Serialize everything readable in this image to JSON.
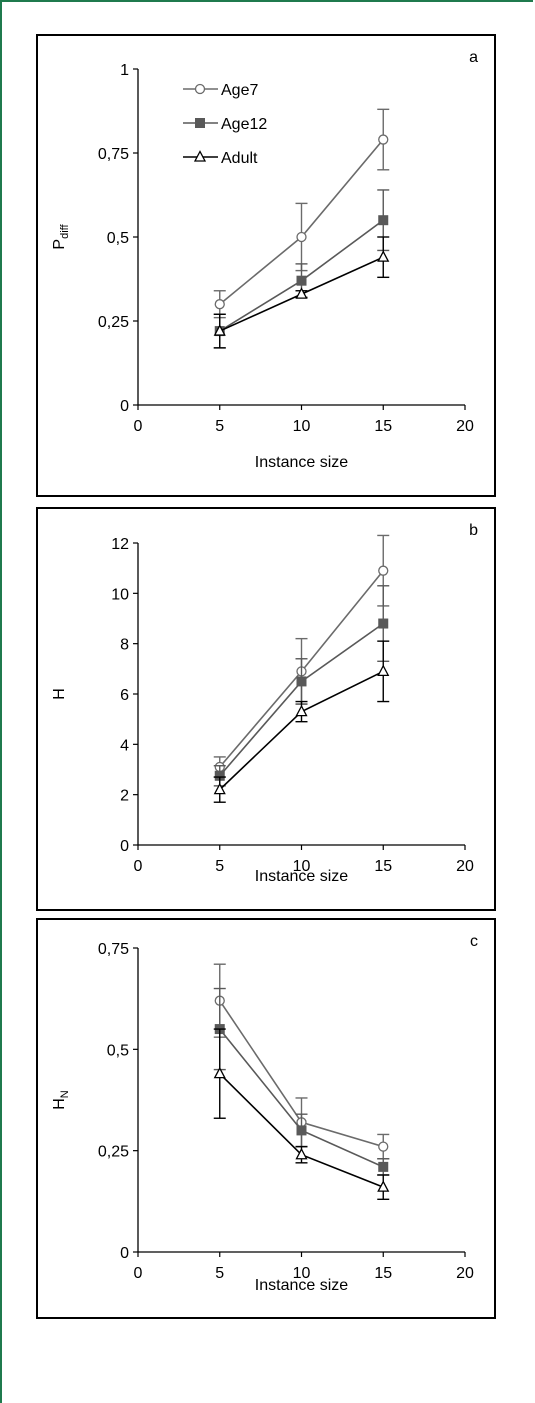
{
  "chart_data": [
    {
      "type": "line",
      "panel_label": "a",
      "xlabel": "Instance size",
      "ylabel_main": "P",
      "ylabel_sub": "diff",
      "xlim": [
        0,
        20
      ],
      "ylim": [
        0,
        1
      ],
      "xticks": [
        0,
        5,
        10,
        15,
        20
      ],
      "xtick_labels": [
        "0",
        "5",
        "10",
        "15",
        "20"
      ],
      "yticks": [
        0,
        0.25,
        0.5,
        0.75,
        1
      ],
      "ytick_labels": [
        "0",
        "0,25",
        "0,5",
        "0,75",
        "1"
      ],
      "x": [
        5,
        10,
        15
      ],
      "legend": true,
      "legend_position": "top-left",
      "series": [
        {
          "name": "Age7",
          "marker": "circle",
          "color": "#6b6b6b",
          "values": [
            0.3,
            0.5,
            0.79
          ],
          "err": [
            0.04,
            0.1,
            0.09
          ]
        },
        {
          "name": "Age12",
          "marker": "square",
          "color": "#595959",
          "values": [
            0.22,
            0.37,
            0.55
          ],
          "err": [
            0.05,
            0.05,
            0.09
          ]
        },
        {
          "name": "Adult",
          "marker": "triangle",
          "color": "#000000",
          "values": [
            0.22,
            0.33,
            0.44
          ],
          "err": [
            0.05,
            0.01,
            0.06
          ]
        }
      ]
    },
    {
      "type": "line",
      "panel_label": "b",
      "xlabel": "Instance size",
      "ylabel_main": "H",
      "ylabel_sub": "",
      "xlim": [
        0,
        20
      ],
      "ylim": [
        0,
        12
      ],
      "xticks": [
        0,
        5,
        10,
        15,
        20
      ],
      "xtick_labels": [
        "0",
        "5",
        "10",
        "15",
        "20"
      ],
      "yticks": [
        0,
        2,
        4,
        6,
        8,
        10,
        12
      ],
      "ytick_labels": [
        "0",
        "2",
        "4",
        "6",
        "8",
        "10",
        "12"
      ],
      "x": [
        5,
        10,
        15
      ],
      "legend": false,
      "series": [
        {
          "name": "Age7",
          "marker": "circle",
          "color": "#6b6b6b",
          "values": [
            3.1,
            6.9,
            10.9
          ],
          "err": [
            0.4,
            1.3,
            1.4
          ]
        },
        {
          "name": "Age12",
          "marker": "square",
          "color": "#595959",
          "values": [
            2.75,
            6.5,
            8.8
          ],
          "err": [
            0.4,
            0.9,
            1.5
          ]
        },
        {
          "name": "Adult",
          "marker": "triangle",
          "color": "#000000",
          "values": [
            2.2,
            5.3,
            6.9
          ],
          "err": [
            0.5,
            0.4,
            1.2
          ]
        }
      ]
    },
    {
      "type": "line",
      "panel_label": "c",
      "xlabel": "Instance size",
      "ylabel_main": "H",
      "ylabel_sub": "N",
      "xlim": [
        0,
        20
      ],
      "ylim": [
        0,
        0.75
      ],
      "xticks": [
        0,
        5,
        10,
        15,
        20
      ],
      "xtick_labels": [
        "0",
        "5",
        "10",
        "15",
        "20"
      ],
      "yticks": [
        0,
        0.25,
        0.5,
        0.75
      ],
      "ytick_labels": [
        "0",
        "0,25",
        "0,5",
        "0,75"
      ],
      "x": [
        5,
        10,
        15
      ],
      "legend": false,
      "series": [
        {
          "name": "Age7",
          "marker": "circle",
          "color": "#6b6b6b",
          "values": [
            0.62,
            0.32,
            0.26
          ],
          "err": [
            0.09,
            0.06,
            0.03
          ]
        },
        {
          "name": "Age12",
          "marker": "square",
          "color": "#595959",
          "values": [
            0.55,
            0.3,
            0.21
          ],
          "err": [
            0.1,
            0.04,
            0.02
          ]
        },
        {
          "name": "Adult",
          "marker": "triangle",
          "color": "#000000",
          "values": [
            0.44,
            0.24,
            0.16
          ],
          "err": [
            0.11,
            0.02,
            0.03
          ]
        }
      ]
    }
  ]
}
